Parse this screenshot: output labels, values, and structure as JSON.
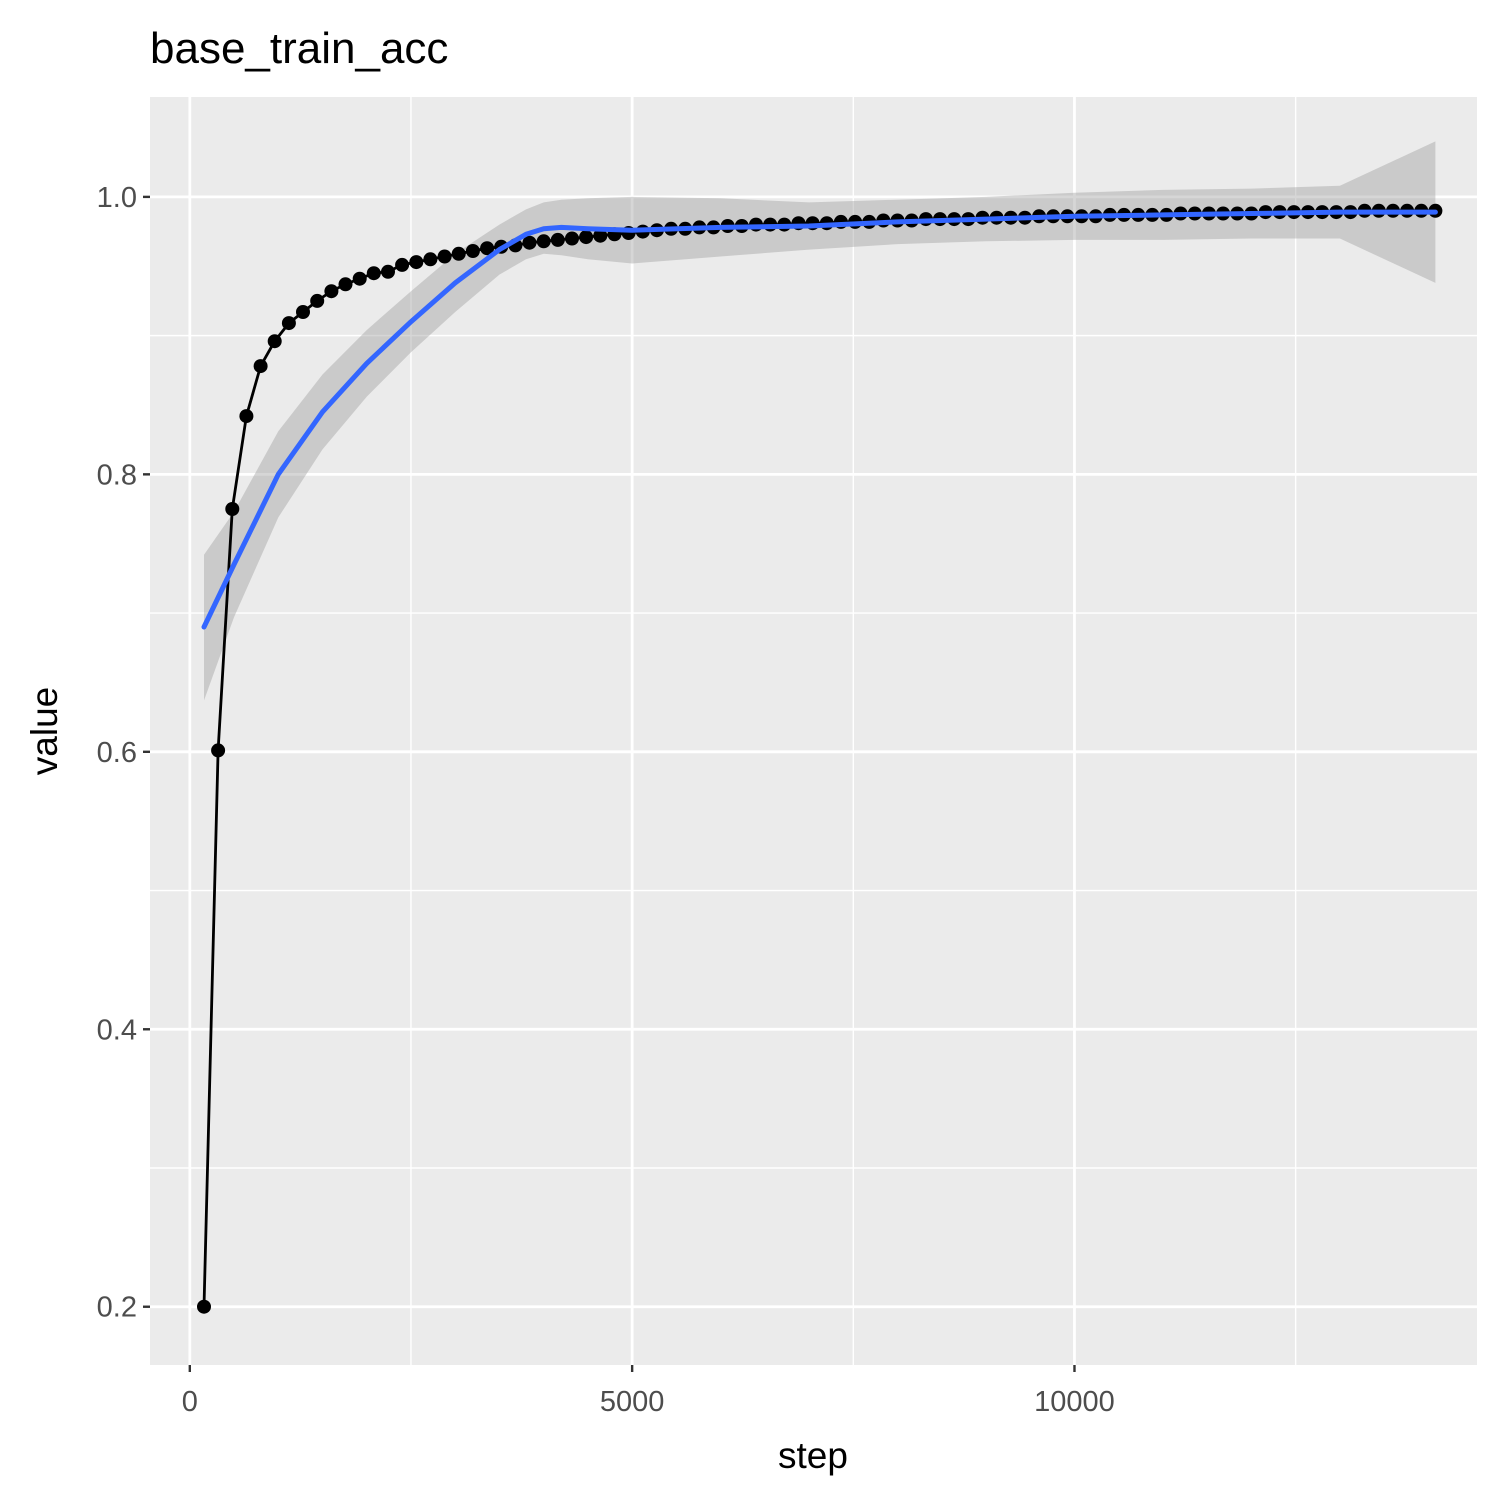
{
  "chart_data": {
    "type": "line",
    "title": "base_train_acc",
    "xlabel": "step",
    "ylabel": "value",
    "xlim": [
      -450,
      14550
    ],
    "ylim": [
      0.158,
      1.072
    ],
    "x_ticks": [
      {
        "value": 0,
        "label": "0"
      },
      {
        "value": 5000,
        "label": "5000"
      },
      {
        "value": 10000,
        "label": "10000"
      }
    ],
    "x_minor_ticks": [
      2500,
      7500,
      12500
    ],
    "y_ticks": [
      {
        "value": 0.2,
        "label": "0.2"
      },
      {
        "value": 0.4,
        "label": "0.4"
      },
      {
        "value": 0.6,
        "label": "0.6"
      },
      {
        "value": 0.8,
        "label": "0.8"
      },
      {
        "value": 1.0,
        "label": "1.0"
      }
    ],
    "y_minor_ticks": [
      0.3,
      0.5,
      0.7,
      0.9
    ],
    "grid": true,
    "legend": "none",
    "colors": {
      "panel": "#ebebeb",
      "grid": "#ffffff",
      "points": "#000000",
      "smooth": "#3366ff",
      "ribbon": "#999999"
    },
    "series": [
      {
        "kind": "line+points",
        "x": [
          160,
          320,
          480,
          640,
          800,
          960,
          1120,
          1280,
          1440,
          1600,
          1760,
          1920,
          2080,
          2240,
          2400,
          2560,
          2720,
          2880,
          3040,
          3200,
          3360,
          3520,
          3680,
          3840,
          4000,
          4160,
          4320,
          4480,
          4640,
          4800,
          4960,
          5120,
          5280,
          5440,
          5600,
          5760,
          5920,
          6080,
          6240,
          6400,
          6560,
          6720,
          6880,
          7040,
          7200,
          7360,
          7520,
          7680,
          7840,
          8000,
          8160,
          8320,
          8480,
          8640,
          8800,
          8960,
          9120,
          9280,
          9440,
          9600,
          9760,
          9920,
          10080,
          10240,
          10400,
          10560,
          10720,
          10880,
          11040,
          11200,
          11360,
          11520,
          11680,
          11840,
          12000,
          12160,
          12320,
          12480,
          12640,
          12800,
          12960,
          13120,
          13280,
          13440,
          13600,
          13760,
          13920,
          14080
        ],
        "values": [
          0.2,
          0.601,
          0.775,
          0.842,
          0.878,
          0.896,
          0.909,
          0.917,
          0.925,
          0.932,
          0.937,
          0.941,
          0.945,
          0.946,
          0.951,
          0.953,
          0.955,
          0.957,
          0.959,
          0.961,
          0.963,
          0.964,
          0.965,
          0.967,
          0.968,
          0.969,
          0.97,
          0.971,
          0.972,
          0.973,
          0.974,
          0.975,
          0.976,
          0.977,
          0.977,
          0.978,
          0.978,
          0.979,
          0.979,
          0.98,
          0.98,
          0.98,
          0.981,
          0.981,
          0.981,
          0.982,
          0.982,
          0.982,
          0.983,
          0.983,
          0.983,
          0.984,
          0.984,
          0.984,
          0.984,
          0.985,
          0.985,
          0.985,
          0.985,
          0.986,
          0.986,
          0.986,
          0.986,
          0.986,
          0.987,
          0.987,
          0.987,
          0.987,
          0.987,
          0.988,
          0.988,
          0.988,
          0.988,
          0.988,
          0.988,
          0.989,
          0.989,
          0.989,
          0.989,
          0.989,
          0.989,
          0.989,
          0.99,
          0.99,
          0.99,
          0.99,
          0.99,
          0.99
        ]
      },
      {
        "kind": "smooth",
        "x": [
          160,
          500,
          1000,
          1500,
          2000,
          2500,
          3000,
          3500,
          3800,
          4000,
          4200,
          4500,
          5000,
          6000,
          7000,
          8000,
          9000,
          10000,
          11000,
          12000,
          13000,
          14080
        ],
        "values": [
          0.69,
          0.735,
          0.8,
          0.845,
          0.88,
          0.91,
          0.938,
          0.962,
          0.973,
          0.977,
          0.978,
          0.977,
          0.976,
          0.978,
          0.979,
          0.982,
          0.984,
          0.986,
          0.987,
          0.988,
          0.989,
          0.989
        ],
        "ci_lower": [
          0.637,
          0.697,
          0.769,
          0.818,
          0.856,
          0.888,
          0.917,
          0.944,
          0.955,
          0.959,
          0.958,
          0.955,
          0.952,
          0.957,
          0.962,
          0.966,
          0.968,
          0.969,
          0.969,
          0.97,
          0.97,
          0.938
        ],
        "ci_upper": [
          0.742,
          0.773,
          0.831,
          0.872,
          0.904,
          0.932,
          0.959,
          0.98,
          0.991,
          0.996,
          0.998,
          0.999,
          1.0,
          0.999,
          0.996,
          0.998,
          1.0,
          1.003,
          1.005,
          1.006,
          1.008,
          1.04
        ]
      }
    ]
  }
}
